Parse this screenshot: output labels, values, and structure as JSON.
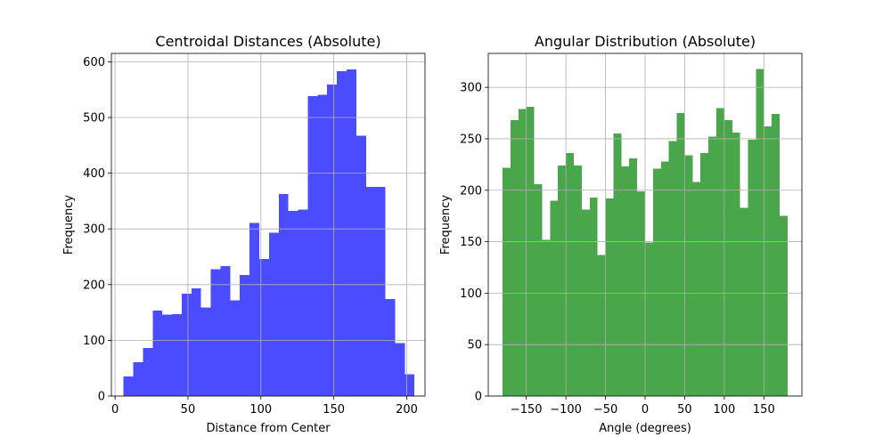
{
  "chart_data": [
    {
      "type": "bar",
      "title": "Centroidal Distances (Absolute)",
      "xlabel": "Distance from Center",
      "ylabel": "Frequency",
      "xlim": [
        -2.5,
        212.5
      ],
      "ylim": [
        0,
        615
      ],
      "xticks": [
        0,
        50,
        100,
        150,
        200
      ],
      "xtick_labels": [
        "0",
        "50",
        "100",
        "150",
        "200"
      ],
      "yticks": [
        0,
        100,
        200,
        300,
        400,
        500,
        600
      ],
      "ytick_labels": [
        "0",
        "100",
        "200",
        "300",
        "400",
        "500",
        "600"
      ],
      "grid": true,
      "color": "#4b4bff",
      "bin_start": 5.8,
      "bin_width": 6.65,
      "values": [
        35,
        61,
        86,
        153,
        146,
        147,
        184,
        193,
        159,
        228,
        233,
        172,
        217,
        311,
        246,
        293,
        363,
        332,
        335,
        538,
        541,
        559,
        583,
        586,
        467,
        375,
        375,
        174,
        95,
        39
      ]
    },
    {
      "type": "bar",
      "title": "Angular Distribution (Absolute)",
      "xlabel": "Angle (degrees)",
      "ylabel": "Frequency",
      "xlim": [
        -198,
        198
      ],
      "ylim": [
        0,
        333
      ],
      "xticks": [
        -150,
        -100,
        -50,
        0,
        50,
        100,
        150
      ],
      "xtick_labels": [
        "−150",
        "−100",
        "−50",
        "0",
        "50",
        "100",
        "150"
      ],
      "yticks": [
        0,
        50,
        100,
        150,
        200,
        250,
        300
      ],
      "ytick_labels": [
        "0",
        "50",
        "100",
        "150",
        "200",
        "250",
        "300"
      ],
      "grid": true,
      "color": "#4aa64a",
      "bin_start": -180,
      "bin_width": 10,
      "values": [
        222,
        268,
        279,
        281,
        206,
        152,
        190,
        224,
        236,
        224,
        181,
        193,
        137,
        192,
        255,
        223,
        231,
        199,
        149,
        221,
        228,
        248,
        275,
        234,
        208,
        236,
        252,
        280,
        268,
        256,
        183,
        249,
        318,
        262,
        274,
        175
      ]
    }
  ]
}
